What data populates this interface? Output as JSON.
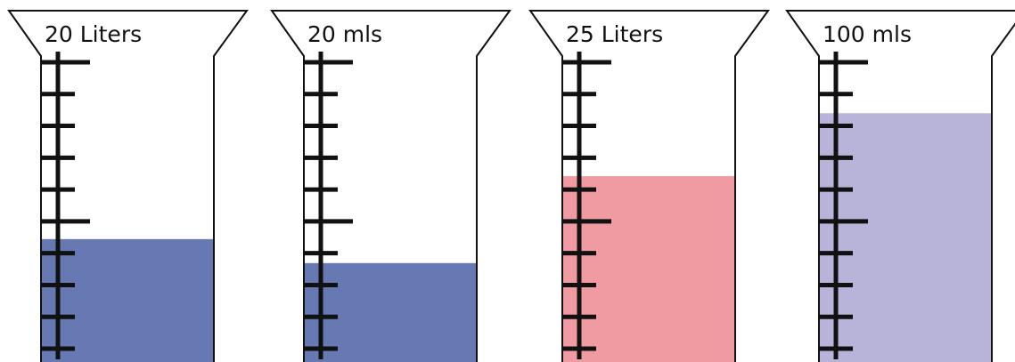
{
  "cylinders": [
    {
      "label": "20 Liters",
      "fill_level": 0.41,
      "fill_color": "#6779b3"
    },
    {
      "label": "20 mls",
      "fill_level": 0.33,
      "fill_color": "#6779b3"
    },
    {
      "label": "25 Liters",
      "fill_level": 0.62,
      "fill_color": "#f09aa1"
    },
    {
      "label": "100 mls",
      "fill_level": 0.83,
      "fill_color": "#b8b3d8"
    }
  ],
  "scale": {
    "tick_count": 10,
    "long_tick_indices": [
      0,
      5
    ]
  }
}
